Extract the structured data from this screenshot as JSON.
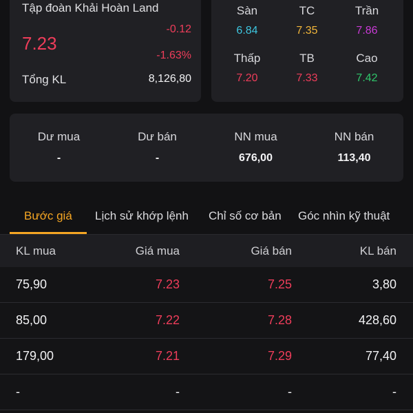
{
  "stock": {
    "name": "Tập đoàn Khải Hoàn Land",
    "last_price": "7.23",
    "change": "-0.12",
    "change_pct": "-1.63%",
    "volume_label": "Tổng KL",
    "volume_value": "8,126,80"
  },
  "prices": [
    {
      "label": "Sàn",
      "value": "6.84",
      "color": "#3ec6e0"
    },
    {
      "label": "TC",
      "value": "7.35",
      "color": "#f2b63a"
    },
    {
      "label": "Trần",
      "value": "7.86",
      "color": "#c93ad6"
    },
    {
      "label": "Thấp",
      "value": "7.20",
      "color": "#ee3d5a"
    },
    {
      "label": "TB",
      "value": "7.33",
      "color": "#ee3d5a"
    },
    {
      "label": "Cao",
      "value": "7.42",
      "color": "#2fc66b"
    }
  ],
  "trade": [
    {
      "label": "Dư mua",
      "value": "-"
    },
    {
      "label": "Dư bán",
      "value": "-"
    },
    {
      "label": "NN mua",
      "value": "676,00"
    },
    {
      "label": "NN bán",
      "value": "113,40"
    }
  ],
  "tabs": [
    {
      "label": "Bước giá",
      "active": true
    },
    {
      "label": "Lịch sử khớp lệnh",
      "active": false
    },
    {
      "label": "Chỉ số cơ bản",
      "active": false
    },
    {
      "label": "Góc nhìn kỹ thuật",
      "active": false
    }
  ],
  "orderbook": {
    "headers": [
      "KL mua",
      "Giá mua",
      "Giá bán",
      "KL bán"
    ],
    "rows": [
      [
        "75,90",
        "7.23",
        "7.25",
        "3,80"
      ],
      [
        "85,00",
        "7.22",
        "7.28",
        "428,60"
      ],
      [
        "179,00",
        "7.21",
        "7.29",
        "77,40"
      ],
      [
        "-",
        "-",
        "-",
        "-"
      ]
    ]
  },
  "colors": {
    "accent": "#f5a623",
    "down": "#ee3d5a"
  }
}
